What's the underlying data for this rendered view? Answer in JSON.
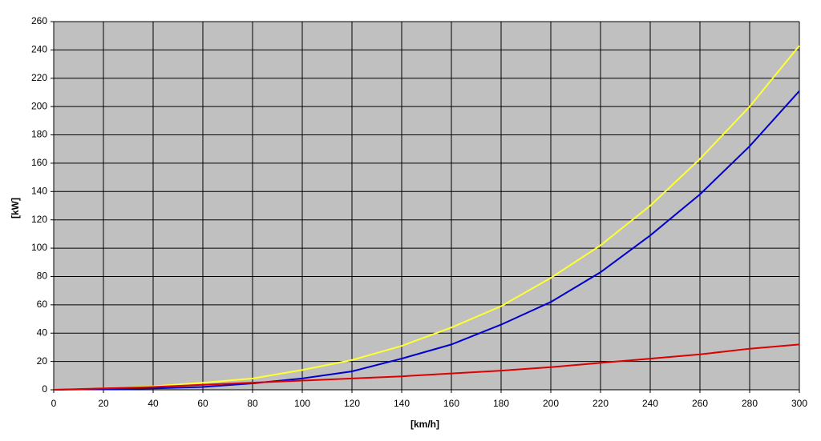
{
  "chart_data": {
    "type": "line",
    "x_label": "[km/h]",
    "y_label": "[kW]",
    "x": [
      0,
      20,
      40,
      60,
      80,
      100,
      120,
      140,
      160,
      180,
      200,
      220,
      240,
      260,
      280,
      300
    ],
    "series": [
      {
        "color": "#ffff33",
        "values": [
          0,
          1,
          2.5,
          5,
          8,
          14,
          21,
          31,
          44,
          59,
          79,
          102,
          130,
          163,
          200,
          243
        ]
      },
      {
        "color": "#0000cc",
        "values": [
          0,
          0.5,
          1,
          2,
          4.5,
          8,
          13,
          22,
          32,
          46,
          62,
          83,
          109,
          138,
          172,
          211
        ]
      },
      {
        "color": "#dd0000",
        "values": [
          0,
          1,
          2,
          3.5,
          5,
          6.5,
          8,
          9.5,
          11.5,
          13.5,
          16,
          19,
          22,
          25,
          29,
          32
        ]
      }
    ],
    "xlim": [
      0,
      300
    ],
    "xticks": [
      0,
      20,
      40,
      60,
      80,
      100,
      120,
      140,
      160,
      180,
      200,
      220,
      240,
      260,
      280,
      300
    ],
    "ylim": [
      0,
      260
    ],
    "yticks": [
      0,
      20,
      40,
      60,
      80,
      100,
      120,
      140,
      160,
      180,
      200,
      220,
      240,
      260
    ],
    "grid": true,
    "plot_background": "#c0c0c0"
  }
}
